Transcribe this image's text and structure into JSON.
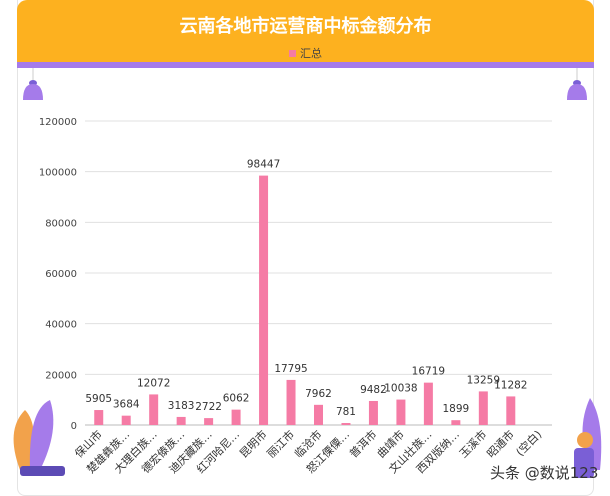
{
  "chart_data": {
    "type": "bar",
    "title": "云南各地市运营商中标金额分布",
    "legend": [
      {
        "name": "汇总",
        "color": "#F57BA5"
      }
    ],
    "legend_position": "top",
    "categories": [
      "保山市",
      "楚雄彝族…",
      "大理白族…",
      "德宏傣族…",
      "迪庆藏族…",
      "红河哈尼…",
      "昆明市",
      "丽江市",
      "临沧市",
      "怒江傈僳…",
      "普洱市",
      "曲靖市",
      "文山壮族…",
      "西双版纳…",
      "玉溪市",
      "昭通市",
      "(空白)"
    ],
    "series": [
      {
        "name": "汇总",
        "values": [
          5905,
          3684,
          12072,
          3183,
          2722,
          6062,
          98447,
          17795,
          7962,
          781,
          9482,
          10038,
          16719,
          1899,
          13259,
          11282,
          null
        ]
      }
    ],
    "yticks": [
      0,
      20000,
      40000,
      60000,
      80000,
      100000,
      120000
    ],
    "ylim": [
      0,
      120000
    ],
    "grid": true
  },
  "colors": {
    "header": "#FDB11F",
    "stripe": "#A57BEA",
    "bar": "#F57BA5"
  },
  "watermark": "头条 @数说123"
}
